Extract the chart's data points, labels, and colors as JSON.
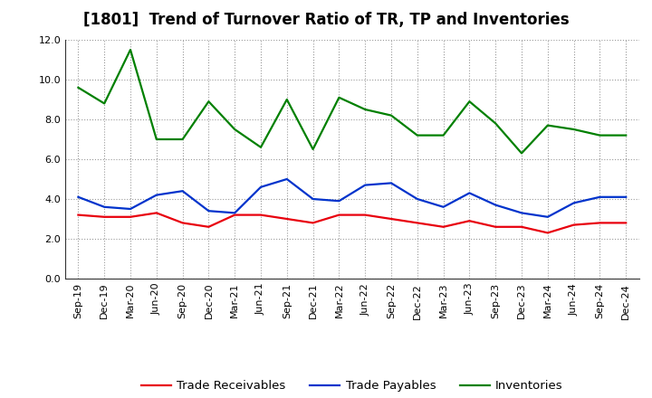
{
  "title": "[1801]  Trend of Turnover Ratio of TR, TP and Inventories",
  "x_labels": [
    "Sep-19",
    "Dec-19",
    "Mar-20",
    "Jun-20",
    "Sep-20",
    "Dec-20",
    "Mar-21",
    "Jun-21",
    "Sep-21",
    "Dec-21",
    "Mar-22",
    "Jun-22",
    "Sep-22",
    "Dec-22",
    "Mar-23",
    "Jun-23",
    "Sep-23",
    "Dec-23",
    "Mar-24",
    "Jun-24",
    "Sep-24",
    "Dec-24"
  ],
  "trade_receivables": [
    3.2,
    3.1,
    3.1,
    3.3,
    2.8,
    2.6,
    3.2,
    3.2,
    3.0,
    2.8,
    3.2,
    3.2,
    3.0,
    2.8,
    2.6,
    2.9,
    2.6,
    2.6,
    2.3,
    2.7,
    2.8,
    2.8
  ],
  "trade_payables": [
    4.1,
    3.6,
    3.5,
    4.2,
    4.4,
    3.4,
    3.3,
    4.6,
    5.0,
    4.0,
    3.9,
    4.7,
    4.8,
    4.0,
    3.6,
    4.3,
    3.7,
    3.3,
    3.1,
    3.8,
    4.1,
    4.1
  ],
  "inventories": [
    9.6,
    8.8,
    11.5,
    7.0,
    7.0,
    8.9,
    7.5,
    6.6,
    9.0,
    6.5,
    9.1,
    8.5,
    8.2,
    7.2,
    7.2,
    8.9,
    7.8,
    6.3,
    7.7,
    7.5,
    7.2,
    7.2
  ],
  "color_tr": "#e8000d",
  "color_tp": "#0033cc",
  "color_inv": "#008000",
  "ylim": [
    0.0,
    12.0
  ],
  "yticks": [
    0.0,
    2.0,
    4.0,
    6.0,
    8.0,
    10.0,
    12.0
  ],
  "legend_labels": [
    "Trade Receivables",
    "Trade Payables",
    "Inventories"
  ],
  "title_fontsize": 12,
  "tick_fontsize": 8,
  "legend_fontsize": 9.5,
  "background_color": "#ffffff",
  "grid_color": "#aaaaaa",
  "line_width": 1.6
}
